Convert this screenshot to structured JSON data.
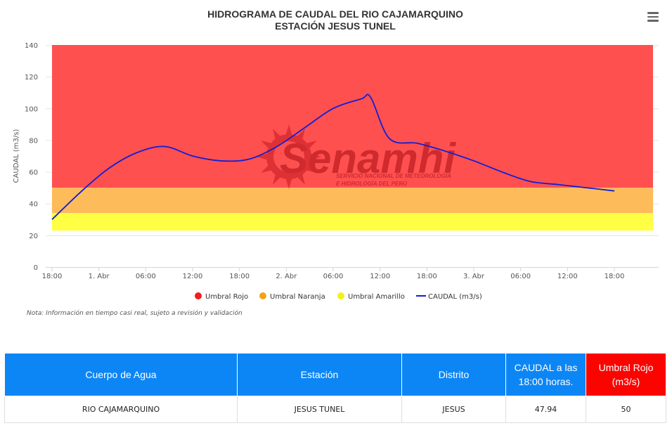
{
  "chart_data": {
    "type": "line",
    "title": "HIDROGRAMA DE CAUDAL DEL RIO CAJAMARQUINO",
    "subtitle": "ESTACIÓN JESUS TUNEL",
    "ylabel": "CAUDAL (m3/s)",
    "xlabel": "",
    "ylim": [
      0,
      140
    ],
    "y_ticks": [
      0,
      20,
      40,
      60,
      80,
      100,
      120,
      140
    ],
    "x_ticks": [
      "18:00",
      "1. Abr",
      "06:00",
      "12:00",
      "18:00",
      "2. Abr",
      "06:00",
      "12:00",
      "18:00",
      "3. Abr",
      "06:00",
      "12:00",
      "18:00"
    ],
    "x_hours": [
      0,
      60
    ],
    "grid": "horizontal",
    "legend_position": "bottom",
    "bands": [
      {
        "name": "Umbral Rojo",
        "from": 50,
        "to": 140,
        "color": "#ff5050"
      },
      {
        "name": "Umbral Naranja",
        "from": 34,
        "to": 50,
        "color": "#fdbb5a"
      },
      {
        "name": "Umbral Amarillo",
        "from": 23,
        "to": 34,
        "color": "#ffff44"
      }
    ],
    "legend": [
      {
        "label": "Umbral Rojo",
        "color": "#f61a1a",
        "kind": "dot"
      },
      {
        "label": "Umbral Naranja",
        "color": "#f5a21a",
        "kind": "dot"
      },
      {
        "label": "Umbral Amarillo",
        "color": "#f2f21a",
        "kind": "dot"
      },
      {
        "label": "CAUDAL (m3/s)",
        "color": "#0f1fd6",
        "kind": "line"
      }
    ],
    "series": [
      {
        "name": "CAUDAL (m3/s)",
        "color": "#0f1fd6",
        "x_hours": [
          0,
          3,
          6,
          9,
          12,
          15,
          18,
          21,
          24,
          27,
          30,
          33,
          34,
          36,
          39,
          42,
          45,
          48,
          51,
          54,
          57,
          60
        ],
        "values": [
          30,
          47,
          62,
          72,
          76,
          70,
          67,
          68,
          76,
          88,
          100,
          106,
          107,
          81,
          78,
          73,
          67,
          60,
          54,
          52,
          50,
          48
        ]
      }
    ]
  },
  "watermark": {
    "name": "Senamhi",
    "line1": "SERVICIO NACIONAL DE METEOROLOGÍA",
    "line2": "E HIDROLOGÍA DEL PERÚ"
  },
  "note": "Nota: Información en tiempo casi real, sujeto a revisión y validación",
  "table": {
    "headers": [
      "Cuerpo de Agua",
      "Estación",
      "Distrito",
      "CAUDAL a las 18:00 horas.",
      "Umbral Rojo (m3/s)"
    ],
    "row": [
      "RIO CAJAMARQUINO",
      "JESUS TUNEL",
      "JESUS",
      "47.94",
      "50"
    ]
  }
}
